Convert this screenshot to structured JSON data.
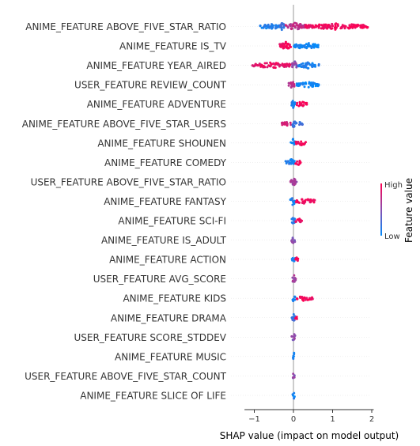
{
  "chart_data": {
    "type": "scatter",
    "subtype": "shap-beeswarm",
    "xlabel": "SHAP value (impact on model output)",
    "xlim": [
      -1.25,
      2.05
    ],
    "xticks": [
      -1,
      0,
      1,
      2
    ],
    "xtick_labels": [
      "−1",
      "0",
      "1",
      "2"
    ],
    "zero_line": 0,
    "grid": false,
    "colorbar": {
      "title": "Feature value",
      "high_label": "High",
      "low_label": "Low",
      "high_color": "#ff0052",
      "low_color": "#008bfb",
      "placement": "right"
    },
    "features": [
      {
        "name": "ANIME_FEATURE ABOVE_FIVE_STAR_RATIO",
        "clusters": [
          {
            "from": -0.85,
            "to": -0.35,
            "value": 0.1,
            "density": 0.7
          },
          {
            "from": -0.35,
            "to": -0.2,
            "value": 0.2,
            "density": 1.0
          },
          {
            "from": -0.2,
            "to": 0.3,
            "value": 0.7,
            "density": 0.9
          },
          {
            "from": 0.3,
            "to": 1.9,
            "value": 0.95,
            "density": 0.7
          }
        ]
      },
      {
        "name": "ANIME_FEATURE IS_TV",
        "clusters": [
          {
            "from": -0.35,
            "to": -0.05,
            "value": 0.95,
            "density": 1.0
          },
          {
            "from": 0.0,
            "to": 0.65,
            "value": 0.05,
            "density": 0.7
          }
        ]
      },
      {
        "name": "ANIME_FEATURE YEAR_AIRED",
        "clusters": [
          {
            "from": -1.05,
            "to": -0.05,
            "value": 0.9,
            "density": 0.6
          },
          {
            "from": -0.05,
            "to": 0.1,
            "value": 0.5,
            "density": 1.0
          },
          {
            "from": 0.1,
            "to": 0.65,
            "value": 0.1,
            "density": 0.6
          }
        ]
      },
      {
        "name": "USER_FEATURE REVIEW_COUNT",
        "clusters": [
          {
            "from": -0.12,
            "to": 0.05,
            "value": 0.7,
            "density": 0.9
          },
          {
            "from": 0.05,
            "to": 0.65,
            "value": 0.05,
            "density": 0.6
          }
        ]
      },
      {
        "name": "ANIME_FEATURE ADVENTURE",
        "clusters": [
          {
            "from": -0.05,
            "to": 0.05,
            "value": 0.1,
            "density": 1.0
          },
          {
            "from": 0.05,
            "to": 0.35,
            "value": 0.95,
            "density": 0.5
          }
        ]
      },
      {
        "name": "ANIME_FEATURE ABOVE_FIVE_STAR_USERS",
        "clusters": [
          {
            "from": -0.3,
            "to": -0.05,
            "value": 0.8,
            "density": 0.5
          },
          {
            "from": -0.05,
            "to": 0.05,
            "value": 0.2,
            "density": 1.0
          },
          {
            "from": 0.05,
            "to": 0.25,
            "value": 0.2,
            "density": 0.4
          }
        ]
      },
      {
        "name": "ANIME_FEATURE SHOUNEN",
        "clusters": [
          {
            "from": -0.08,
            "to": 0.05,
            "value": 0.1,
            "density": 1.0
          },
          {
            "from": 0.05,
            "to": 0.32,
            "value": 0.95,
            "density": 0.5
          }
        ]
      },
      {
        "name": "ANIME_FEATURE COMEDY",
        "clusters": [
          {
            "from": -0.2,
            "to": 0.05,
            "value": 0.1,
            "density": 0.8
          },
          {
            "from": 0.05,
            "to": 0.2,
            "value": 0.95,
            "density": 0.5
          }
        ]
      },
      {
        "name": "USER_FEATURE ABOVE_FIVE_STAR_RATIO",
        "clusters": [
          {
            "from": -0.08,
            "to": 0.08,
            "value": 0.6,
            "density": 1.0
          }
        ]
      },
      {
        "name": "ANIME_FEATURE FANTASY",
        "clusters": [
          {
            "from": -0.08,
            "to": 0.05,
            "value": 0.1,
            "density": 1.0
          },
          {
            "from": 0.05,
            "to": 0.55,
            "value": 0.95,
            "density": 0.5
          }
        ]
      },
      {
        "name": "ANIME_FEATURE SCI-FI",
        "clusters": [
          {
            "from": -0.05,
            "to": 0.05,
            "value": 0.1,
            "density": 1.0
          },
          {
            "from": 0.05,
            "to": 0.22,
            "value": 0.95,
            "density": 0.4
          }
        ]
      },
      {
        "name": "ANIME_FEATURE IS_ADULT",
        "clusters": [
          {
            "from": -0.05,
            "to": 0.05,
            "value": 0.5,
            "density": 1.0
          }
        ]
      },
      {
        "name": "ANIME_FEATURE ACTION",
        "clusters": [
          {
            "from": -0.05,
            "to": 0.05,
            "value": 0.1,
            "density": 1.0
          },
          {
            "from": 0.05,
            "to": 0.12,
            "value": 0.95,
            "density": 0.5
          }
        ]
      },
      {
        "name": "USER_FEATURE AVG_SCORE",
        "clusters": [
          {
            "from": -0.05,
            "to": 0.06,
            "value": 0.6,
            "density": 1.0
          }
        ]
      },
      {
        "name": "ANIME_FEATURE KIDS",
        "clusters": [
          {
            "from": -0.03,
            "to": 0.05,
            "value": 0.1,
            "density": 1.0
          },
          {
            "from": 0.05,
            "to": 0.5,
            "value": 0.95,
            "density": 0.5
          }
        ]
      },
      {
        "name": "ANIME_FEATURE DRAMA",
        "clusters": [
          {
            "from": -0.05,
            "to": 0.05,
            "value": 0.2,
            "density": 1.0
          },
          {
            "from": 0.05,
            "to": 0.08,
            "value": 0.95,
            "density": 0.5
          }
        ]
      },
      {
        "name": "USER_FEATURE SCORE_STDDEV",
        "clusters": [
          {
            "from": -0.05,
            "to": 0.05,
            "value": 0.5,
            "density": 1.0
          }
        ]
      },
      {
        "name": "ANIME_FEATURE MUSIC",
        "clusters": [
          {
            "from": -0.02,
            "to": 0.04,
            "value": 0.1,
            "density": 1.0
          }
        ]
      },
      {
        "name": "USER_FEATURE ABOVE_FIVE_STAR_COUNT",
        "clusters": [
          {
            "from": -0.02,
            "to": 0.03,
            "value": 0.5,
            "density": 1.0
          }
        ]
      },
      {
        "name": "ANIME_FEATURE SLICE OF LIFE",
        "clusters": [
          {
            "from": -0.02,
            "to": 0.03,
            "value": 0.1,
            "density": 1.0
          }
        ]
      }
    ]
  }
}
